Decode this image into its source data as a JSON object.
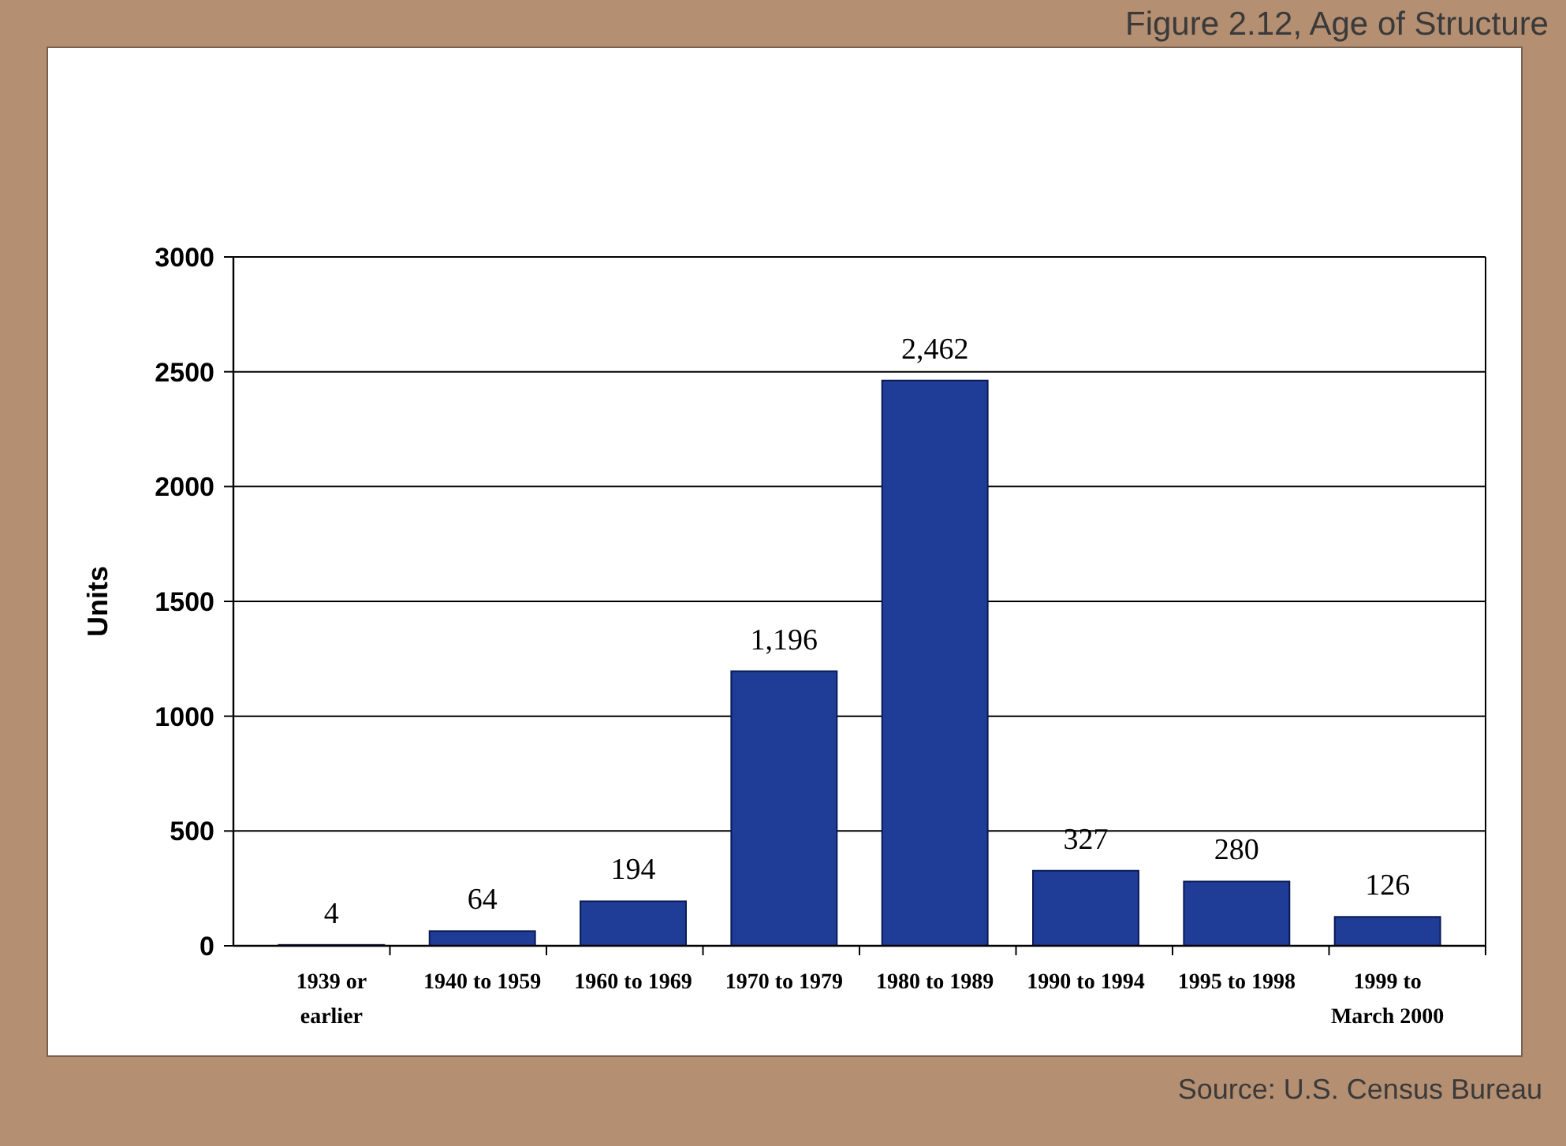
{
  "chart_data": {
    "type": "bar",
    "title": "Figure 2.12, Age of Structure",
    "ylabel": "Units",
    "categories": [
      "1939 or earlier",
      "1940 to 1959",
      "1960 to 1969",
      "1970 to 1979",
      "1980 to 1989",
      "1990 to 1994",
      "1995 to 1998",
      "1999 to March 2000"
    ],
    "values": [
      4,
      64,
      194,
      1196,
      2462,
      327,
      280,
      126
    ],
    "color": "#1f3c96",
    "value_labels": [
      "4",
      "64",
      "194",
      "1,196",
      "2,462",
      "327",
      "280",
      "126"
    ],
    "ylim": [
      0,
      3000
    ],
    "yticks": [
      0,
      500,
      1000,
      1500,
      2000,
      2500,
      3000
    ],
    "grid": "y",
    "annotations": [
      "Source: U.S. Census Bureau"
    ]
  }
}
